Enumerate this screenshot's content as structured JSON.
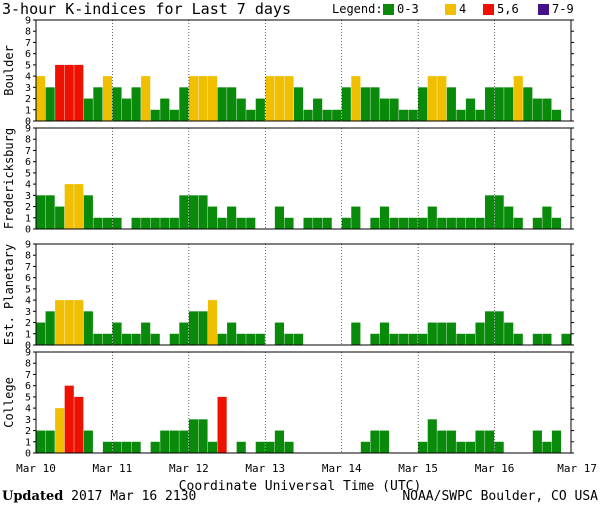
{
  "colors": {
    "quiet": "#0a8a0a",
    "k4": "#f0c000",
    "k56": "#ee1100",
    "k79": "#441188",
    "frame": "#000000"
  },
  "chart_data": {
    "type": "bar",
    "title": "3-hour K-indices for Last 7 days",
    "legend": {
      "label": "Legend:",
      "entries": [
        {
          "label": "0-3",
          "color": "#0a8a0a"
        },
        {
          "label": "4",
          "color": "#f0c000"
        },
        {
          "label": "5,6",
          "color": "#ee1100"
        },
        {
          "label": "7-9",
          "color": "#441188"
        }
      ],
      "placement": "top-right"
    },
    "xlabel": "Coordinate Universal Time (UTC)",
    "x_ticks": [
      "Mar 10",
      "Mar 11",
      "Mar 12",
      "Mar 13",
      "Mar 14",
      "Mar 15",
      "Mar 16",
      "Mar 17"
    ],
    "y_ticks": [
      "0",
      "1",
      "2",
      "3",
      "4",
      "5",
      "6",
      "7",
      "8",
      "9"
    ],
    "ylim": [
      0,
      9
    ],
    "bins_per_day": 8,
    "panels": [
      {
        "name": "Boulder",
        "values": [
          4,
          3,
          5,
          5,
          5,
          2,
          3,
          4,
          3,
          2,
          3,
          4,
          1,
          2,
          1,
          3,
          4,
          4,
          4,
          3,
          3,
          2,
          1,
          2,
          4,
          4,
          4,
          3,
          1,
          2,
          1,
          1,
          3,
          4,
          3,
          3,
          2,
          2,
          1,
          1,
          3,
          4,
          4,
          3,
          1,
          2,
          1,
          3,
          3,
          3,
          4,
          3,
          2,
          2,
          1,
          0
        ]
      },
      {
        "name": "Fredericksburg",
        "values": [
          3,
          3,
          2,
          4,
          4,
          3,
          1,
          1,
          1,
          0,
          1,
          1,
          1,
          1,
          1,
          3,
          3,
          3,
          2,
          1,
          2,
          1,
          1,
          0,
          0,
          2,
          1,
          0,
          1,
          1,
          1,
          0,
          1,
          2,
          0,
          1,
          2,
          1,
          1,
          1,
          1,
          2,
          1,
          1,
          1,
          1,
          1,
          3,
          3,
          2,
          1,
          0,
          1,
          2,
          1,
          0
        ]
      },
      {
        "name": "Est. Planetary",
        "values": [
          2,
          3,
          4,
          4,
          4,
          3,
          1,
          1,
          2,
          1,
          1,
          2,
          1,
          0,
          1,
          2,
          3,
          3,
          4,
          1,
          2,
          1,
          1,
          1,
          0,
          2,
          1,
          1,
          0,
          0,
          0,
          0,
          0,
          2,
          0,
          1,
          2,
          1,
          1,
          1,
          1,
          2,
          2,
          2,
          1,
          1,
          2,
          3,
          3,
          2,
          1,
          0,
          1,
          1,
          0,
          1
        ]
      },
      {
        "name": "College",
        "values": [
          2,
          2,
          4,
          6,
          5,
          2,
          0,
          1,
          1,
          1,
          1,
          0,
          1,
          2,
          2,
          2,
          3,
          3,
          1,
          5,
          0,
          1,
          0,
          1,
          1,
          2,
          1,
          0,
          0,
          0,
          0,
          0,
          0,
          0,
          1,
          2,
          2,
          0,
          0,
          0,
          1,
          3,
          2,
          2,
          1,
          1,
          2,
          2,
          1,
          0,
          0,
          0,
          2,
          1,
          2,
          0
        ]
      }
    ]
  },
  "footer": {
    "updated_label": "Updated",
    "updated_time": "2017 Mar 16 2130",
    "credit": "NOAA/SWPC Boulder, CO USA"
  }
}
